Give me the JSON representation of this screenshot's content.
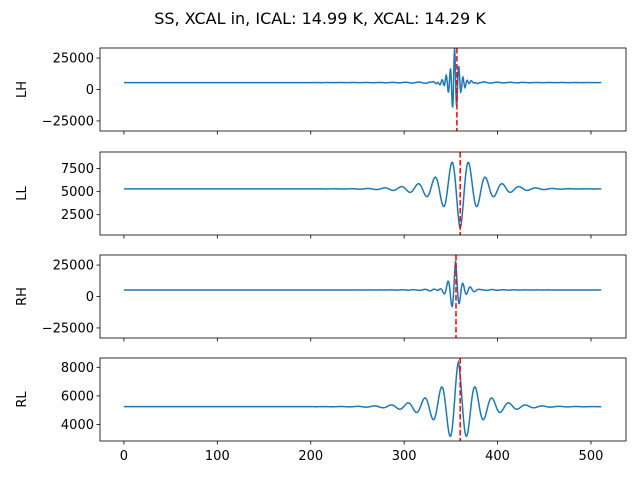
{
  "chart_data": {
    "type": "line",
    "title": "SS, XCAL in, ICAL: 14.99 K, XCAL: 14.29 K",
    "xlim": [
      -25.6,
      537.5
    ],
    "x_ticks": [
      0,
      100,
      200,
      300,
      400,
      500
    ],
    "x_range": [
      0,
      511
    ],
    "line_color": "#1f77b4",
    "marker_color": "#ff0000",
    "panels": [
      {
        "ylabel": "LH",
        "ylim": [
          -33000,
          33000
        ],
        "y_ticks": [
          -25000,
          0,
          25000
        ],
        "baseline": 5500,
        "center": 354,
        "amplitude": 30000,
        "period": 4.5,
        "decay": 5,
        "ripple_amplitude": 1200,
        "ripple_period": 14,
        "ripple_decay": 35,
        "marker_x": 356.5
      },
      {
        "ylabel": "LL",
        "ylim": [
          300,
          9300
        ],
        "y_ticks": [
          2500,
          5000,
          7500
        ],
        "baseline": 5300,
        "center": 360,
        "amplitude": -4300,
        "period": 18,
        "decay": 22,
        "ripple_amplitude": 0,
        "ripple_period": 18,
        "ripple_decay": 30,
        "marker_x": 360
      },
      {
        "ylabel": "RH",
        "ylim": [
          -33000,
          33000
        ],
        "y_ticks": [
          -25000,
          0,
          25000
        ],
        "baseline": 5200,
        "center": 355,
        "amplitude": 23000,
        "period": 8,
        "decay": 6,
        "ripple_amplitude": 1500,
        "ripple_period": 12,
        "ripple_decay": 25,
        "marker_x": 355.5
      },
      {
        "ylabel": "RL",
        "ylim": [
          2850,
          8650
        ],
        "y_ticks": [
          4000,
          6000,
          8000
        ],
        "baseline": 5250,
        "center": 358,
        "amplitude": 3100,
        "period": 18,
        "decay": 22,
        "ripple_amplitude": 0,
        "ripple_period": 18,
        "ripple_decay": 30,
        "marker_x": 360
      }
    ]
  }
}
